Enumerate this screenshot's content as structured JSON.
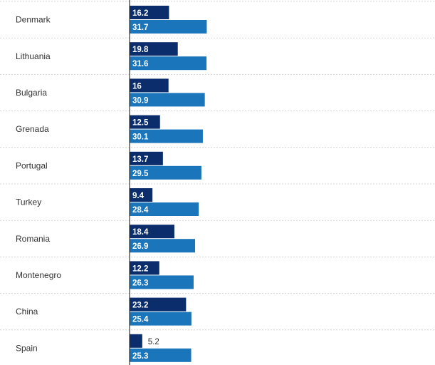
{
  "chart_data": {
    "type": "bar",
    "orientation": "horizontal",
    "categories": [
      "Denmark",
      "Lithuania",
      "Bulgaria",
      "Grenada",
      "Portugal",
      "Turkey",
      "Romania",
      "Montenegro",
      "China",
      "Spain"
    ],
    "series": [
      {
        "values": [
          16.2,
          19.8,
          16,
          12.5,
          13.7,
          9.4,
          18.4,
          12.2,
          23.2,
          5.2
        ],
        "color": "#0b2d6b"
      },
      {
        "values": [
          31.7,
          31.6,
          30.9,
          30.1,
          29.5,
          28.4,
          26.9,
          26.3,
          25.4,
          25.3
        ],
        "color": "#1b75bb"
      }
    ],
    "xlim": [
      0,
      100
    ],
    "grid": "dotted row separators",
    "legend": "none"
  }
}
